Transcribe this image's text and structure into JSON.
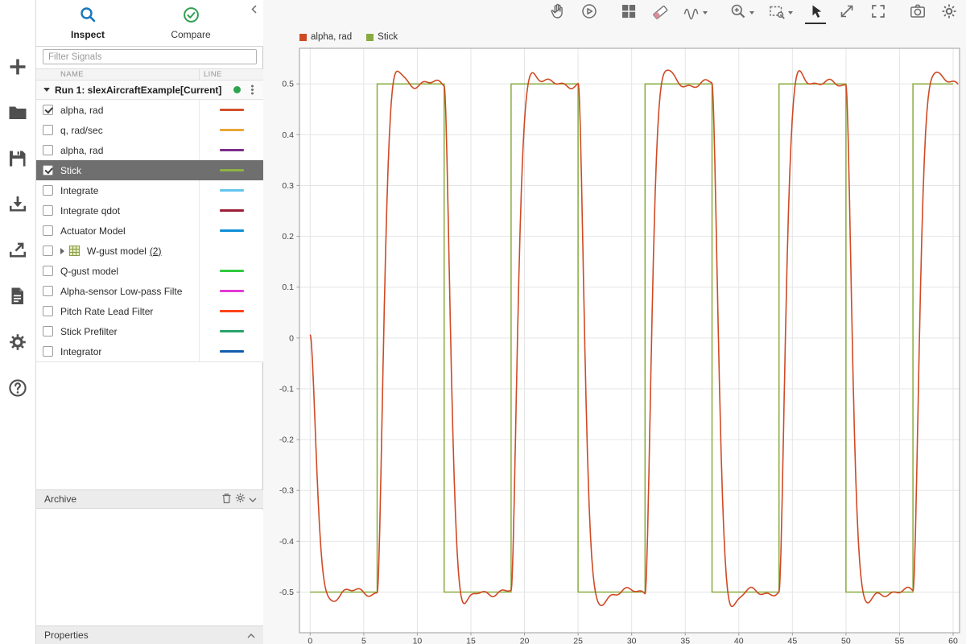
{
  "left_toolbar": {
    "icons": [
      {
        "name": "new-icon"
      },
      {
        "name": "open-folder-icon"
      },
      {
        "name": "save-icon"
      },
      {
        "name": "import-icon"
      },
      {
        "name": "export-icon"
      },
      {
        "name": "report-icon"
      },
      {
        "name": "preferences-gear-icon"
      },
      {
        "name": "help-icon"
      }
    ]
  },
  "sidebar": {
    "tabs": [
      {
        "label": "Inspect",
        "icon": "search-icon",
        "active": true
      },
      {
        "label": "Compare",
        "icon": "check-circle-icon",
        "active": false
      }
    ],
    "filter_placeholder": "Filter Signals",
    "columns": {
      "name": "NAME",
      "line": "LINE"
    },
    "run": {
      "label": "Run 1: slexAircraftExample[Current]",
      "status_color": "#2da44e"
    },
    "signals": [
      {
        "label": "alpha, rad",
        "checked": true,
        "line_color": "#d1502b"
      },
      {
        "label": "q, rad/sec",
        "checked": false,
        "line_color": "#eaa636"
      },
      {
        "label": "alpha, rad",
        "checked": false,
        "line_color": "#7b2d8b"
      },
      {
        "label": "Stick",
        "checked": true,
        "selected": true,
        "line_color": "#8fb344"
      },
      {
        "label": "Integrate",
        "checked": false,
        "line_color": "#63c5ee"
      },
      {
        "label": "Integrate qdot",
        "checked": false,
        "line_color": "#9c1e37"
      },
      {
        "label": "Actuator Model",
        "checked": false,
        "line_color": "#0e8fd6"
      },
      {
        "label": "W-gust model",
        "group": true,
        "count": "(2)"
      },
      {
        "label": "Q-gust model",
        "checked": false,
        "line_color": "#2fcb3f"
      },
      {
        "label": "Alpha-sensor Low-pass Filter",
        "checked": false,
        "line_color": "#e43ad6"
      },
      {
        "label": "Pitch Rate Lead Filter",
        "checked": false,
        "line_color": "#fb4218"
      },
      {
        "label": "Stick Prefilter",
        "checked": false,
        "line_color": "#2ba26b"
      },
      {
        "label": "Integrator",
        "checked": false,
        "line_color": "#135cae"
      }
    ],
    "archive": {
      "title": "Archive"
    },
    "properties": {
      "title": "Properties"
    }
  },
  "plot_toolbar": {
    "icons": [
      {
        "name": "pan-hand-icon"
      },
      {
        "name": "replay-icon"
      },
      {
        "name": "layout-grid-icon"
      },
      {
        "name": "eraser-icon"
      },
      {
        "name": "signal-wave-icon",
        "dropdown": true
      },
      {
        "name": "zoom-in-icon",
        "dropdown": true
      },
      {
        "name": "zoom-region-icon",
        "dropdown": true
      },
      {
        "name": "pointer-icon",
        "active": true
      },
      {
        "name": "fit-to-view-icon"
      },
      {
        "name": "fullscreen-icon"
      },
      {
        "name": "snapshot-camera-icon"
      },
      {
        "name": "settings-gear-icon"
      }
    ]
  },
  "legend": [
    {
      "label": "alpha, rad",
      "color": "#cf4a24"
    },
    {
      "label": "Stick",
      "color": "#87ab3e"
    }
  ],
  "chart_data": {
    "type": "line",
    "title": "",
    "xlabel": "",
    "ylabel": "",
    "grid": true,
    "xlim": [
      -1,
      60.6
    ],
    "ylim": [
      -0.58,
      0.57
    ],
    "x_ticks": [
      0,
      5,
      10,
      15,
      20,
      25,
      30,
      35,
      40,
      45,
      50,
      55,
      60
    ],
    "x_tick_labels": [
      "0",
      "5",
      "10",
      "15",
      "20",
      "25",
      "30",
      "35",
      "40",
      "45",
      "50",
      "55",
      "60"
    ],
    "y_ticks": [
      -0.5,
      -0.4,
      -0.3,
      -0.2,
      -0.1,
      0,
      0.1,
      0.2,
      0.3,
      0.4,
      0.5
    ],
    "y_tick_labels": [
      "-0.5",
      "-0.4",
      "-0.3",
      "-0.2",
      "-0.1",
      "0",
      "0.1",
      "0.2",
      "0.3",
      "0.4",
      "0.5"
    ],
    "series": [
      {
        "name": "Stick",
        "color": "#87ab3e",
        "kind": "square",
        "low": -0.5,
        "high": 0.5,
        "initial": -0.5,
        "t_start": 0,
        "t_end": 60,
        "transitions": [
          6.25,
          12.5,
          18.75,
          25,
          31.25,
          37.5,
          43.75,
          50,
          56.25
        ]
      },
      {
        "name": "alpha, rad",
        "color": "#cf4a24",
        "kind": "response",
        "t_start": 0,
        "t_end": 60.5,
        "model": {
          "type": "second-order-tracking-of-Stick",
          "zeta": 0.75,
          "wn": 2.4,
          "y0": 0,
          "v0": 0,
          "ripple": [
            {
              "amp": 0.006,
              "freq": 1.7,
              "phase": 1.1
            },
            {
              "amp": 0.0035,
              "freq": 4.3,
              "phase": 0.4
            }
          ]
        }
      }
    ]
  }
}
